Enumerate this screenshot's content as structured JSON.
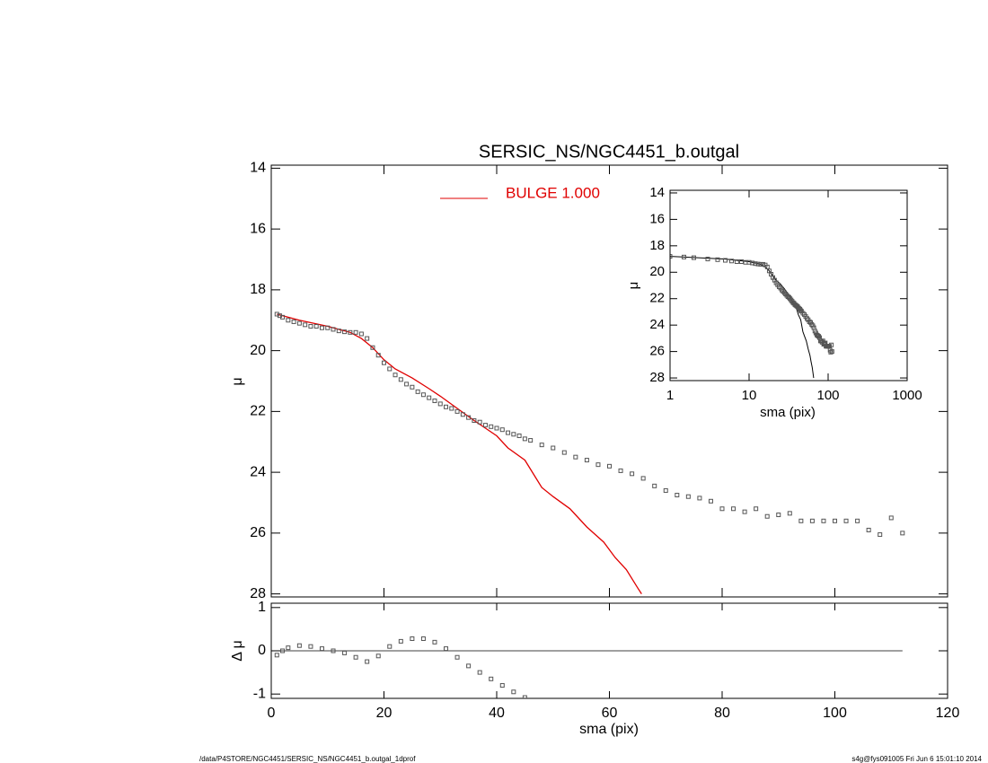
{
  "chart_data": [
    {
      "type": "scatter",
      "title": "SERSIC_NS/NGC4451_b.outgal",
      "ylabel": "μ",
      "xlim": [
        0,
        120
      ],
      "ylim": [
        28.1,
        13.9
      ],
      "yticks": [
        14,
        16,
        18,
        20,
        22,
        24,
        26,
        28
      ],
      "series": [
        {
          "name": "BULGE  1.000",
          "color": "#e00000",
          "mark": "line",
          "x": [
            1,
            5,
            10,
            14,
            16,
            18,
            20,
            22,
            25,
            28,
            30,
            33,
            36,
            40,
            42,
            45,
            47,
            48,
            50,
            53,
            56,
            59,
            61,
            63,
            65,
            65.7
          ],
          "values": [
            18.8,
            19.0,
            19.2,
            19.4,
            19.6,
            19.9,
            20.3,
            20.6,
            20.9,
            21.25,
            21.5,
            21.9,
            22.3,
            22.8,
            23.2,
            23.6,
            24.2,
            24.5,
            24.8,
            25.2,
            25.8,
            26.3,
            26.8,
            27.2,
            27.8,
            28.0
          ]
        },
        {
          "color": "#555555",
          "mark": "square",
          "x": [
            1,
            1.5,
            2,
            3,
            4,
            5,
            6,
            7,
            8,
            9,
            10,
            11,
            12,
            13,
            14,
            15,
            16,
            17,
            18,
            19,
            20,
            21,
            22,
            23,
            24,
            25,
            26,
            27,
            28,
            29,
            30,
            31,
            32,
            33,
            34,
            35,
            36,
            37,
            38,
            39,
            40,
            41,
            42,
            43,
            44,
            45,
            46,
            48,
            50,
            52,
            54,
            56,
            58,
            60,
            62,
            64,
            66,
            68,
            70,
            72,
            74,
            76,
            78,
            80,
            82,
            84,
            86,
            88,
            90,
            92,
            94,
            96,
            98,
            100,
            102,
            104,
            106,
            108,
            110,
            112
          ],
          "values": [
            18.8,
            18.85,
            18.9,
            19.0,
            19.05,
            19.1,
            19.15,
            19.2,
            19.2,
            19.25,
            19.25,
            19.3,
            19.35,
            19.38,
            19.4,
            19.4,
            19.45,
            19.6,
            19.9,
            20.15,
            20.4,
            20.6,
            20.8,
            20.95,
            21.1,
            21.2,
            21.35,
            21.45,
            21.55,
            21.65,
            21.75,
            21.85,
            21.9,
            22.0,
            22.1,
            22.2,
            22.3,
            22.35,
            22.45,
            22.5,
            22.55,
            22.6,
            22.7,
            22.75,
            22.8,
            22.9,
            22.95,
            23.1,
            23.2,
            23.35,
            23.5,
            23.6,
            23.75,
            23.8,
            23.95,
            24.05,
            24.2,
            24.45,
            24.6,
            24.75,
            24.8,
            24.85,
            24.95,
            25.2,
            25.2,
            25.3,
            25.2,
            25.45,
            25.4,
            25.35,
            25.6,
            25.6,
            25.6,
            25.6,
            25.6,
            25.6,
            25.9,
            26.05,
            25.5,
            26.0
          ]
        }
      ]
    },
    {
      "type": "scatter",
      "xlabel": "sma (pix)",
      "ylabel": "Δ μ",
      "xlim": [
        0,
        120
      ],
      "xticks": [
        0,
        20,
        40,
        60,
        80,
        100,
        120
      ],
      "ylim": [
        -1.1,
        1.1
      ],
      "yticks": [
        1,
        0,
        -1
      ],
      "series": [
        {
          "color": "#555555",
          "mark": "square",
          "x": [
            1,
            2,
            3,
            5,
            7,
            9,
            11,
            13,
            15,
            17,
            19,
            21,
            23,
            25,
            27,
            29,
            31,
            33,
            35,
            37,
            39,
            41,
            43,
            45
          ],
          "values": [
            -0.1,
            0.0,
            0.07,
            0.12,
            0.1,
            0.05,
            0.0,
            -0.05,
            -0.15,
            -0.25,
            -0.12,
            0.1,
            0.22,
            0.28,
            0.28,
            0.2,
            0.05,
            -0.15,
            -0.35,
            -0.5,
            -0.65,
            -0.8,
            -0.95,
            -1.08
          ]
        }
      ]
    },
    {
      "type": "inset",
      "xlabel": "sma (pix)",
      "ylabel": "μ",
      "log_x": true,
      "xlim": [
        1,
        1000
      ],
      "xticks": [
        1,
        10,
        100,
        1000
      ],
      "ylim": [
        28.2,
        13.8
      ],
      "yticks": [
        14,
        16,
        18,
        20,
        22,
        24,
        26,
        28
      ]
    }
  ],
  "footer": {
    "left": "/data/P4STORE/NGC4451/SERSIC_NS/NGC4451_b.outgal_1dprof",
    "right": "s4g@fys091005  Fri Jun  6 15:01:10 2014"
  }
}
